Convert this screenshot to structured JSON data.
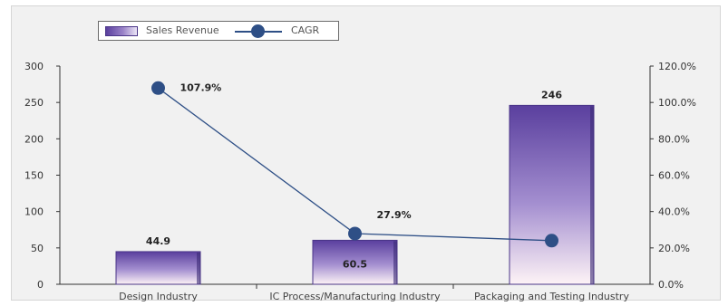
{
  "chart_data": {
    "type": "bar",
    "categories": [
      "Design Industry",
      "IC Process/Manufacturing Industry",
      "Packaging and Testing Industry"
    ],
    "series": [
      {
        "name": "Sales Revenue",
        "type": "bar",
        "axis": "left",
        "values": [
          44.9,
          60.5,
          246
        ],
        "labels": [
          "44.9",
          "60.5",
          "246"
        ]
      },
      {
        "name": "CAGR",
        "type": "line",
        "axis": "right",
        "values": [
          107.9,
          27.9,
          24.0
        ],
        "labels": [
          "107.9%",
          "27.9%",
          ""
        ]
      }
    ],
    "y_left": {
      "ylim": [
        0,
        300
      ],
      "ticks": [
        "0",
        "50",
        "100",
        "150",
        "200",
        "250",
        "300"
      ]
    },
    "y_right": {
      "ylim": [
        0,
        120
      ],
      "ticks": [
        "0.0%",
        "20.0%",
        "40.0%",
        "60.0%",
        "80.0%",
        "100.0%",
        "120.0%"
      ]
    },
    "legend_position": "top-left",
    "grid": false,
    "colors": {
      "bar_top": "#5a3f9e",
      "bar_bottom": "#fdf3f6",
      "line": "#2e4f86"
    }
  },
  "legend": {
    "bar_label": "Sales Revenue",
    "line_label": "CAGR"
  }
}
